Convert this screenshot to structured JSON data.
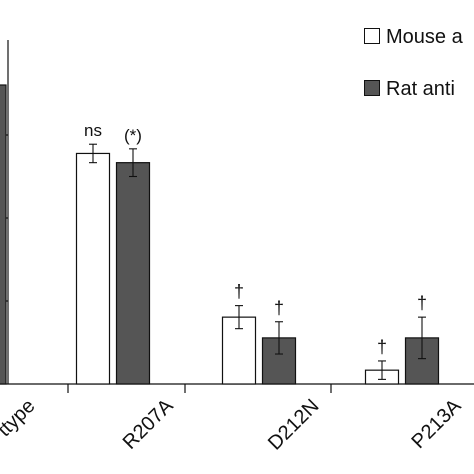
{
  "chart_data": {
    "type": "bar",
    "categories": [
      "ttype",
      "R207A",
      "D212N",
      "P213A"
    ],
    "series": [
      {
        "name": "Mouse a",
        "color": "#ffffff",
        "values": [
          null,
          1.0,
          0.29,
          0.06
        ],
        "errors": [
          null,
          0.04,
          0.05,
          0.04
        ],
        "annotations": [
          "",
          "ns",
          "†",
          "†"
        ]
      },
      {
        "name": "Rat anti",
        "color": "#555555",
        "values": [
          null,
          0.96,
          0.2,
          0.2
        ],
        "errors": [
          null,
          0.06,
          0.07,
          0.09
        ],
        "annotations": [
          "",
          "(*)",
          "†",
          "†"
        ]
      }
    ],
    "ylim": [
      0,
      1.44
    ],
    "legend_position": "top-right"
  }
}
